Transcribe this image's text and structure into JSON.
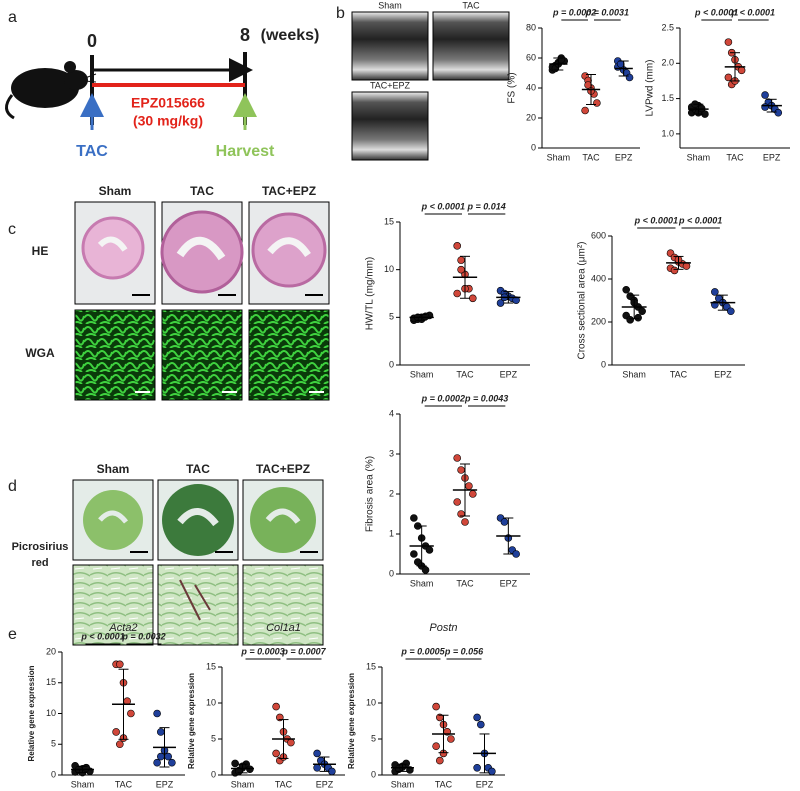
{
  "panels": [
    "a",
    "b",
    "c",
    "d",
    "e"
  ],
  "timeline": {
    "start": "0",
    "end": "8",
    "unit": "(weeks)",
    "surgery": "TAC",
    "drug": "EPZ015666",
    "dose": "(30 mg/kg)",
    "end_event": "Harvest"
  },
  "echo_labels": [
    "Sham",
    "TAC",
    "TAC+EPZ"
  ],
  "histology_c": {
    "columns": [
      "Sham",
      "TAC",
      "TAC+EPZ"
    ],
    "rows": [
      "HE",
      "WGA"
    ]
  },
  "histology_d": {
    "columns": [
      "Sham",
      "TAC",
      "TAC+EPZ"
    ],
    "rows": [
      "Picrosirius",
      "red"
    ]
  },
  "chart_data": [
    {
      "type": "dot",
      "ylabel": "FS (%)",
      "categories": [
        "Sham",
        "TAC",
        "EPZ"
      ],
      "colors": [
        "#111111",
        "#d0473a",
        "#1f3f9a"
      ],
      "values": [
        [
          52,
          55,
          57,
          60,
          58,
          54,
          53,
          56,
          59
        ],
        [
          48,
          45,
          40,
          36,
          30,
          25,
          42,
          38
        ],
        [
          58,
          55,
          52,
          50,
          47,
          54,
          56
        ]
      ],
      "means": [
        56,
        39,
        53
      ],
      "sds": [
        4,
        10,
        5
      ],
      "ylim": [
        0,
        80
      ],
      "yticks": [
        0,
        20,
        40,
        60,
        80
      ],
      "comparisons": [
        {
          "label": "p = 0.0002",
          "from": 0,
          "to": 1
        },
        {
          "label": "p = 0.0031",
          "from": 1,
          "to": 2
        }
      ]
    },
    {
      "type": "dot",
      "ylabel": "LVPwd (mm)",
      "categories": [
        "Sham",
        "TAC",
        "EPZ"
      ],
      "colors": [
        "#111111",
        "#d0473a",
        "#1f3f9a"
      ],
      "values": [
        [
          1.3,
          1.35,
          1.4,
          1.32,
          1.28,
          1.38,
          1.42,
          1.3,
          1.36
        ],
        [
          2.3,
          2.15,
          2.05,
          1.95,
          1.9,
          1.8,
          1.7,
          1.75
        ],
        [
          1.55,
          1.45,
          1.4,
          1.35,
          1.3,
          1.38
        ]
      ],
      "means": [
        1.35,
        1.95,
        1.4
      ],
      "sds": [
        0.07,
        0.2,
        0.09
      ],
      "ylim": [
        0.8,
        2.5
      ],
      "yticks": [
        {
          "value": 1,
          "label": "1.0"
        },
        1.5,
        {
          "value": 2,
          "label": "2.0"
        },
        2.5
      ],
      "comparisons": [
        {
          "label": "p < 0.0001",
          "from": 0,
          "to": 1
        },
        {
          "label": "p < 0.0001",
          "from": 1,
          "to": 2
        }
      ]
    },
    {
      "type": "dot",
      "ylabel": "HW/TL (mg/mm)",
      "categories": [
        "Sham",
        "TAC",
        "EPZ"
      ],
      "colors": [
        "#111111",
        "#d0473a",
        "#1f3f9a"
      ],
      "values": [
        [
          4.7,
          4.8,
          5,
          5.1,
          5.2,
          4.9,
          5,
          4.8,
          5.1
        ],
        [
          12.5,
          11,
          9.5,
          8,
          7,
          7.5,
          10,
          8
        ],
        [
          7.8,
          7.5,
          7.2,
          7,
          6.8,
          6.5,
          7.1
        ]
      ],
      "means": [
        5,
        9.2,
        7.1
      ],
      "sds": [
        0.3,
        2.2,
        0.6
      ],
      "ylim": [
        0,
        15
      ],
      "yticks": [
        0,
        5,
        10,
        15
      ],
      "comparisons": [
        {
          "label": "p < 0.0001",
          "from": 0,
          "to": 1
        },
        {
          "label": "p = 0.014",
          "from": 1,
          "to": 2
        }
      ]
    },
    {
      "type": "dot",
      "ylabel": "Cross sectional area (μm²)",
      "categories": [
        "Sham",
        "TAC",
        "EPZ"
      ],
      "colors": [
        "#111111",
        "#d0473a",
        "#1f3f9a"
      ],
      "values": [
        [
          350,
          320,
          300,
          270,
          250,
          230,
          210,
          290,
          220
        ],
        [
          520,
          500,
          480,
          470,
          460,
          450,
          440,
          490
        ],
        [
          340,
          310,
          290,
          270,
          250,
          280
        ]
      ],
      "means": [
        270,
        475,
        290
      ],
      "sds": [
        55,
        30,
        35
      ],
      "ylim": [
        0,
        600
      ],
      "yticks": [
        0,
        200,
        400,
        600
      ],
      "comparisons": [
        {
          "label": "p < 0.0001",
          "from": 0,
          "to": 1
        },
        {
          "label": "p < 0.0001",
          "from": 1,
          "to": 2
        }
      ]
    },
    {
      "type": "dot",
      "ylabel": "Fibrosis area (%)",
      "categories": [
        "Sham",
        "TAC",
        "EPZ"
      ],
      "colors": [
        "#111111",
        "#d0473a",
        "#1f3f9a"
      ],
      "values": [
        [
          1.4,
          1.2,
          0.9,
          0.7,
          0.6,
          0.5,
          0.3,
          0.2,
          0.1
        ],
        [
          2.9,
          2.6,
          2.4,
          2.2,
          2,
          1.8,
          1.5,
          1.3
        ],
        [
          1.4,
          1.3,
          0.9,
          0.6,
          0.5
        ]
      ],
      "means": [
        0.7,
        2.1,
        0.95
      ],
      "sds": [
        0.5,
        0.65,
        0.45
      ],
      "ylim": [
        0,
        4
      ],
      "yticks": [
        0,
        1,
        2,
        3,
        4
      ],
      "comparisons": [
        {
          "label": "p = 0.0002",
          "from": 0,
          "to": 1
        },
        {
          "label": "p = 0.0043",
          "from": 1,
          "to": 2
        }
      ]
    },
    {
      "type": "dot",
      "title": "Acta2",
      "ylabel": "Relative gene expression",
      "categories": [
        "Sham",
        "TAC",
        "EPZ"
      ],
      "colors": [
        "#111111",
        "#d0473a",
        "#1f3f9a"
      ],
      "values": [
        [
          0.5,
          0.8,
          1,
          1.2,
          0.6,
          1.5,
          0.9,
          0.4,
          1.1
        ],
        [
          18,
          18,
          15,
          12,
          10,
          7,
          5,
          6
        ],
        [
          10,
          7,
          4,
          3,
          2,
          2,
          3
        ]
      ],
      "means": [
        0.9,
        11.5,
        4.5
      ],
      "sds": [
        0.5,
        5.7,
        3.2
      ],
      "ylim": [
        0,
        20
      ],
      "yticks": [
        0,
        5,
        10,
        15,
        20
      ],
      "comparisons": [
        {
          "label": "p < 0.0001",
          "from": 0,
          "to": 1
        },
        {
          "label": "p = 0.0032",
          "from": 1,
          "to": 2
        }
      ]
    },
    {
      "type": "dot",
      "title": "Col1a1",
      "ylabel": "Relative gene expression",
      "categories": [
        "Sham",
        "TAC",
        "EPZ"
      ],
      "colors": [
        "#111111",
        "#d0473a",
        "#1f3f9a"
      ],
      "values": [
        [
          0.3,
          0.6,
          1,
          1.5,
          0.8,
          1.6,
          0.5,
          1.2
        ],
        [
          9.5,
          8,
          6,
          5,
          4.5,
          3,
          2,
          2.5
        ],
        [
          3,
          2,
          1.5,
          1,
          0.5,
          1
        ]
      ],
      "means": [
        0.9,
        5,
        1.5
      ],
      "sds": [
        0.6,
        2.7,
        1
      ],
      "ylim": [
        0,
        15
      ],
      "yticks": [
        0,
        5,
        10,
        15
      ],
      "comparisons": [
        {
          "label": "p = 0.0003",
          "from": 0,
          "to": 1
        },
        {
          "label": "p = 0.0007",
          "from": 1,
          "to": 2
        }
      ]
    },
    {
      "type": "dot",
      "title": "Postn",
      "ylabel": "Relative gene expression",
      "categories": [
        "Sham",
        "TAC",
        "EPZ"
      ],
      "colors": [
        "#111111",
        "#d0473a",
        "#1f3f9a"
      ],
      "values": [
        [
          0.5,
          0.8,
          1.2,
          1.6,
          0.7,
          1.4,
          0.9,
          1.1
        ],
        [
          9.5,
          8,
          7,
          6,
          5,
          4,
          2,
          3
        ],
        [
          8,
          7,
          3,
          1,
          0.5,
          1
        ]
      ],
      "means": [
        1,
        5.7,
        3
      ],
      "sds": [
        0.5,
        2.6,
        2.7
      ],
      "ylim": [
        0,
        15
      ],
      "yticks": [
        0,
        5,
        10,
        15
      ],
      "comparisons": [
        {
          "label": "p = 0.0005",
          "from": 0,
          "to": 1
        },
        {
          "label": "p = 0.056",
          "from": 1,
          "to": 2
        }
      ]
    }
  ]
}
